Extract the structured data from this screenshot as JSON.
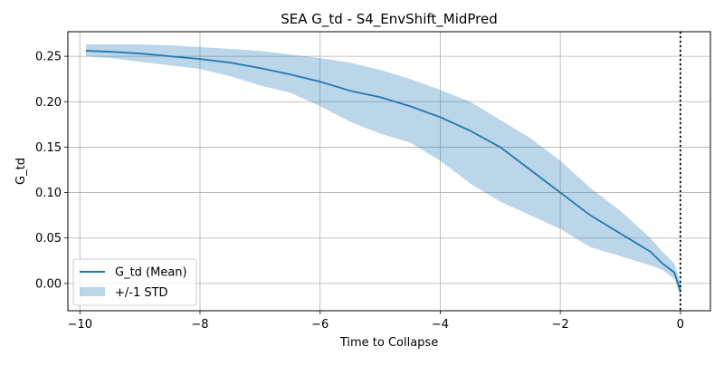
{
  "chart_data": {
    "type": "line",
    "title": "SEA G_td - S4_EnvShift_MidPred",
    "xlabel": "Time to Collapse",
    "ylabel": "G_td",
    "xlim": [
      -10.2,
      0.5
    ],
    "ylim": [
      -0.03,
      0.277
    ],
    "xticks": [
      -10,
      -8,
      -6,
      -4,
      -2,
      0
    ],
    "xtick_labels": [
      "−10",
      "−8",
      "−6",
      "−4",
      "−2",
      "0"
    ],
    "yticks": [
      0.0,
      0.05,
      0.1,
      0.15,
      0.2,
      0.25
    ],
    "ytick_labels": [
      "0.00",
      "0.05",
      "0.10",
      "0.15",
      "0.20",
      "0.25"
    ],
    "grid": true,
    "legend_position": "lower-left",
    "vertical_line": {
      "x": 0,
      "style": "dotted",
      "color": "#000000"
    },
    "colors": {
      "line": "#1f77b4",
      "band": "#1f77b4",
      "band_opacity": 0.3
    },
    "series": [
      {
        "name": "G_td (Mean)",
        "x": [
          -9.9,
          -9.5,
          -9.0,
          -8.5,
          -8.0,
          -7.5,
          -7.0,
          -6.5,
          -6.0,
          -5.5,
          -5.0,
          -4.5,
          -4.0,
          -3.5,
          -3.0,
          -2.5,
          -2.0,
          -1.5,
          -1.0,
          -0.5,
          -0.3,
          -0.1,
          0.0
        ],
        "y": [
          0.256,
          0.255,
          0.253,
          0.25,
          0.247,
          0.243,
          0.237,
          0.23,
          0.222,
          0.212,
          0.205,
          0.195,
          0.183,
          0.168,
          0.15,
          0.125,
          0.1,
          0.075,
          0.055,
          0.035,
          0.022,
          0.012,
          -0.008
        ]
      },
      {
        "name": "+/-1 STD",
        "x": [
          -9.9,
          -9.5,
          -9.0,
          -8.5,
          -8.0,
          -7.5,
          -7.0,
          -6.5,
          -6.0,
          -5.5,
          -5.0,
          -4.5,
          -4.0,
          -3.5,
          -3.0,
          -2.5,
          -2.0,
          -1.5,
          -1.0,
          -0.5,
          -0.3,
          -0.1,
          0.0
        ],
        "upper": [
          0.263,
          0.263,
          0.263,
          0.262,
          0.26,
          0.258,
          0.256,
          0.252,
          0.248,
          0.243,
          0.235,
          0.225,
          0.213,
          0.2,
          0.18,
          0.16,
          0.135,
          0.105,
          0.08,
          0.05,
          0.035,
          0.022,
          0.0
        ],
        "lower": [
          0.25,
          0.248,
          0.244,
          0.24,
          0.236,
          0.228,
          0.218,
          0.21,
          0.195,
          0.178,
          0.165,
          0.155,
          0.135,
          0.11,
          0.09,
          0.075,
          0.06,
          0.04,
          0.03,
          0.02,
          0.015,
          0.005,
          -0.015
        ]
      }
    ]
  }
}
